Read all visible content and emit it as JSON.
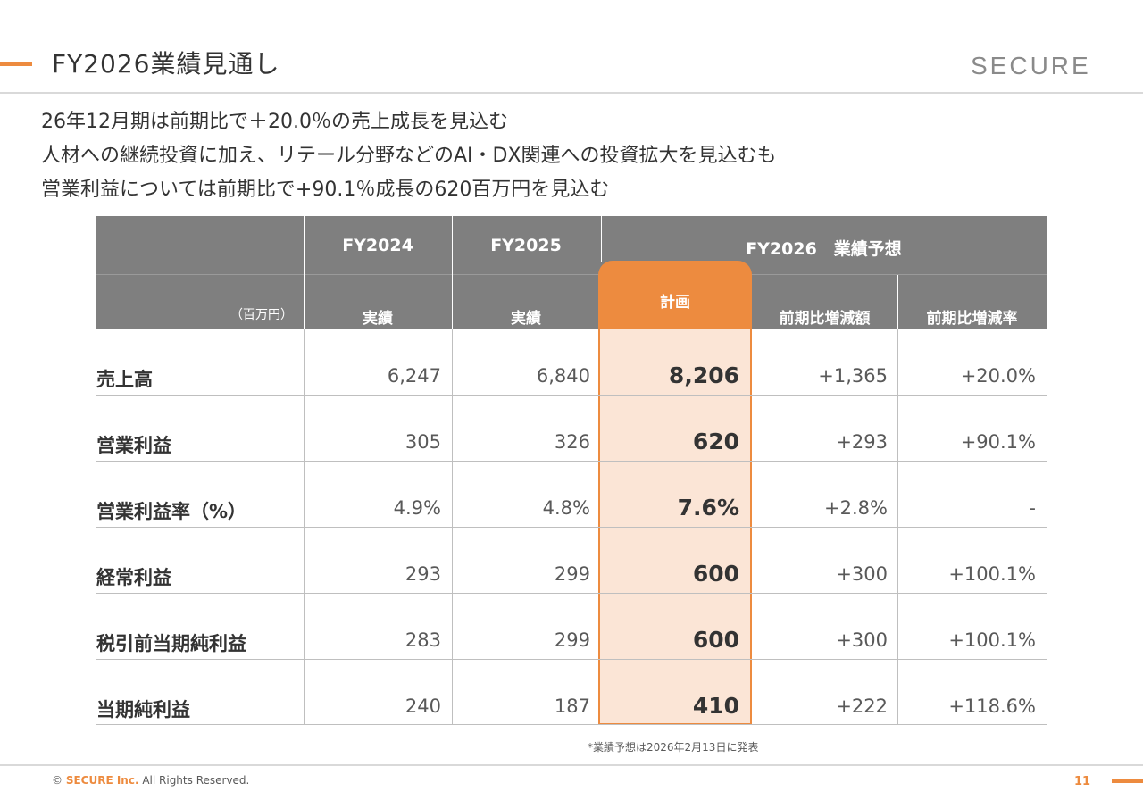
{
  "header": {
    "title": "FY2026業績見通し",
    "logo_text": "SECURE"
  },
  "summary": [
    "26年12月期は前期比で＋20.0％の売上成長を見込む",
    "人材への継続投資に加え、リテール分野などのAI・DX関連への投資拡大を見込むも",
    "営業利益については前期比で+90.1％成長の620百万円を見込む"
  ],
  "table": {
    "unit_label": "（百万円）",
    "col_groups": {
      "fy2024": "FY2024",
      "fy2025": "FY2025",
      "fy2026": "FY2026　業績予想"
    },
    "sub_headers": {
      "fy2024": "実績",
      "fy2025": "実績",
      "plan": "計画",
      "yoy_amount": "前期比増減額",
      "yoy_rate": "前期比増減率"
    },
    "rows": [
      {
        "label": "売上高",
        "fy2024": "6,247",
        "fy2025": "6,840",
        "plan": "8,206",
        "yoy_amount": "+1,365",
        "yoy_rate": "+20.0%"
      },
      {
        "label": "営業利益",
        "fy2024": "305",
        "fy2025": "326",
        "plan": "620",
        "yoy_amount": "+293",
        "yoy_rate": "+90.1%"
      },
      {
        "label": "営業利益率（%）",
        "fy2024": "4.9%",
        "fy2025": "4.8%",
        "plan": "7.6%",
        "yoy_amount": "+2.8%",
        "yoy_rate": "-"
      },
      {
        "label": "経常利益",
        "fy2024": "293",
        "fy2025": "299",
        "plan": "600",
        "yoy_amount": "+300",
        "yoy_rate": "+100.1%"
      },
      {
        "label": "税引前当期純利益",
        "fy2024": "283",
        "fy2025": "299",
        "plan": "600",
        "yoy_amount": "+300",
        "yoy_rate": "+100.1%"
      },
      {
        "label": "当期純利益",
        "fy2024": "240",
        "fy2025": "187",
        "plan": "410",
        "yoy_amount": "+222",
        "yoy_rate": "+118.6%"
      }
    ]
  },
  "footnote": "*業績予想は2026年2月13日に発表",
  "footer": {
    "copyright_prefix": "© ",
    "brand": "SECURE Inc.",
    "copyright_suffix": " All Rights Reserved.",
    "page_number": "11"
  },
  "colors": {
    "accent": "#ED8B3F",
    "plan_fill": "#FBE5D6",
    "header_gray": "#7F7F7F"
  }
}
